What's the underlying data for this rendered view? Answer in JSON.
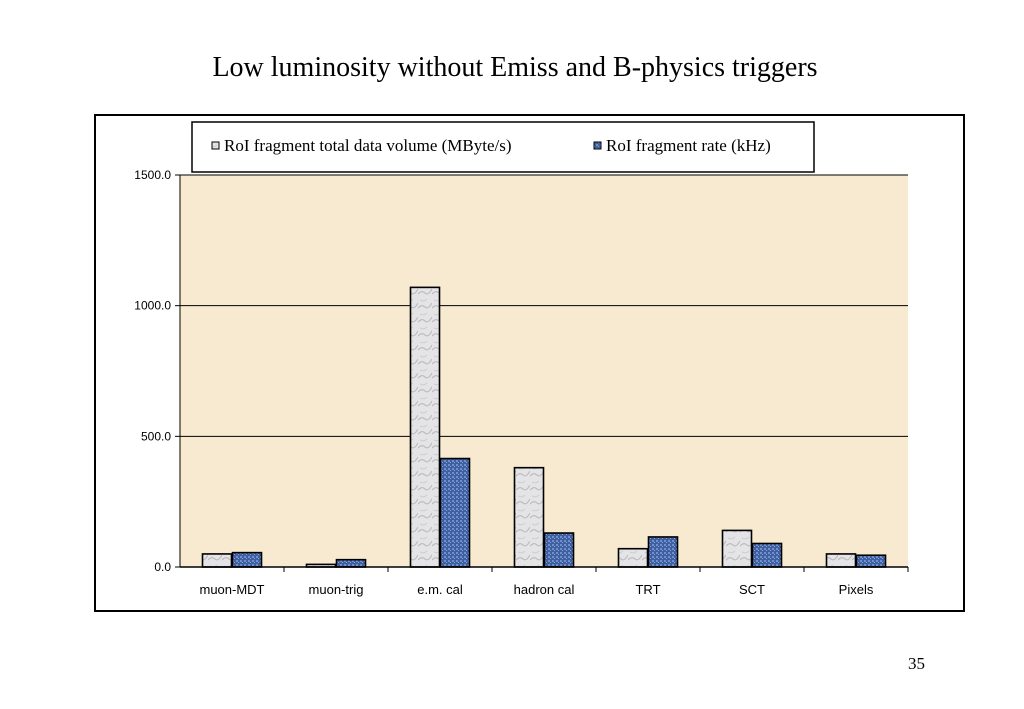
{
  "slide": {
    "title": "Low luminosity without Emiss and B-physics triggers",
    "page_number": "35"
  },
  "colors": {
    "plot_background": "#f7ead0",
    "series1_fill": "#e2e2e4",
    "series2_fill": "#4a6aa8",
    "bar_outline": "#000000",
    "gridline": "#000000"
  },
  "chart_data": {
    "type": "bar",
    "title": "",
    "xlabel": "",
    "ylabel": "",
    "categories": [
      "muon-MDT",
      "muon-trig",
      "e.m. cal",
      "hadron cal",
      "TRT",
      "SCT",
      "Pixels"
    ],
    "series": [
      {
        "name": "RoI fragment total data volume (MByte/s)",
        "values": [
          50,
          10,
          1070,
          380,
          70,
          140,
          50
        ]
      },
      {
        "name": "RoI fragment rate (kHz)",
        "values": [
          55,
          28,
          415,
          130,
          115,
          90,
          45
        ]
      }
    ],
    "ylim": [
      0,
      1500
    ],
    "yticks": [
      "0.0",
      "500.0",
      "1000.0",
      "1500.0"
    ],
    "grid": true,
    "legend_position": "top"
  }
}
